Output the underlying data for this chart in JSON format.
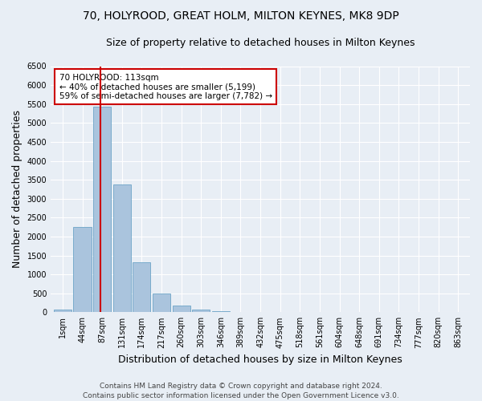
{
  "title_line1": "70, HOLYROOD, GREAT HOLM, MILTON KEYNES, MK8 9DP",
  "title_line2": "Size of property relative to detached houses in Milton Keynes",
  "xlabel": "Distribution of detached houses by size in Milton Keynes",
  "ylabel": "Number of detached properties",
  "footnote": "Contains HM Land Registry data © Crown copyright and database right 2024.\nContains public sector information licensed under the Open Government Licence v3.0.",
  "categories": [
    "1sqm",
    "44sqm",
    "87sqm",
    "131sqm",
    "174sqm",
    "217sqm",
    "260sqm",
    "303sqm",
    "346sqm",
    "389sqm",
    "432sqm",
    "475sqm",
    "518sqm",
    "561sqm",
    "604sqm",
    "648sqm",
    "691sqm",
    "734sqm",
    "777sqm",
    "820sqm",
    "863sqm"
  ],
  "values": [
    75,
    2260,
    5420,
    3380,
    1310,
    490,
    185,
    75,
    30,
    0,
    0,
    0,
    0,
    0,
    0,
    0,
    0,
    0,
    0,
    0,
    0
  ],
  "bar_color": "#aac4dd",
  "bar_edge_color": "#5a9ac0",
  "vline_color": "#cc0000",
  "vline_x": 1.93,
  "annotation_text": "70 HOLYROOD: 113sqm\n← 40% of detached houses are smaller (5,199)\n59% of semi-detached houses are larger (7,782) →",
  "annotation_box_color": "#ffffff",
  "annotation_box_edgecolor": "#cc0000",
  "ylim": [
    0,
    6500
  ],
  "yticks": [
    0,
    500,
    1000,
    1500,
    2000,
    2500,
    3000,
    3500,
    4000,
    4500,
    5000,
    5500,
    6000,
    6500
  ],
  "background_color": "#e8eef5",
  "grid_color": "#ffffff",
  "title_fontsize": 10,
  "subtitle_fontsize": 9,
  "axis_label_fontsize": 9,
  "tick_fontsize": 7,
  "annotation_fontsize": 7.5,
  "footnote_fontsize": 6.5
}
